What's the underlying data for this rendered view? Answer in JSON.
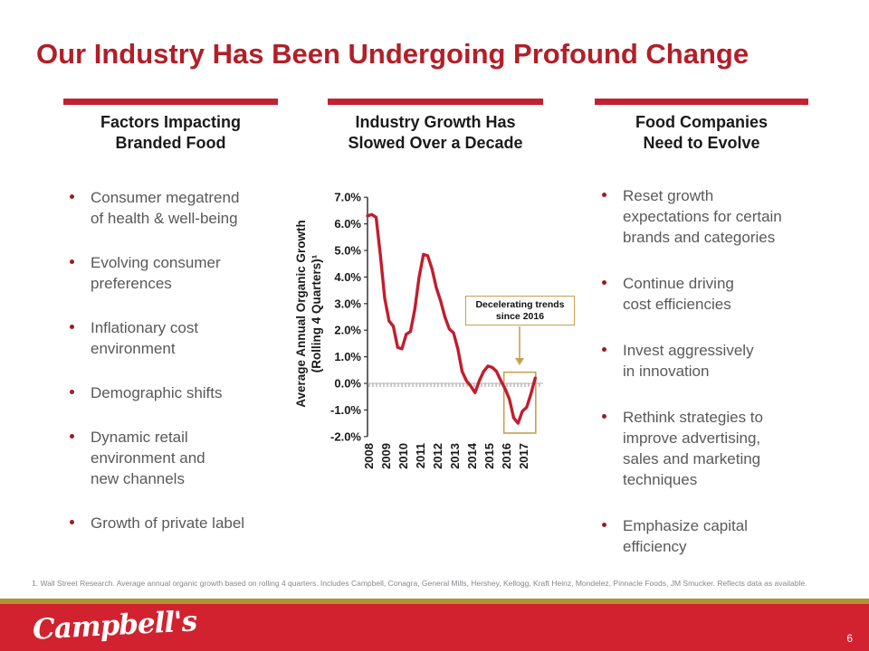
{
  "slide": {
    "title": "Our Industry Has Been Undergoing Profound Change",
    "page_number": "6",
    "footnote": "1. Wall Street Research. Average annual organic growth based on rolling 4 quarters. Includes Campbell, Conagra, General Mills, Hershey, Kellogg, Kraft Heinz, Mondelez, Pinnacle Foods, JM Smucker. Reflects data as available.",
    "logo_text": "Campbell's"
  },
  "columns": {
    "left": {
      "header": "Factors Impacting\nBranded Food",
      "items": [
        "Consumer megatrend\nof health & well-being",
        "Evolving consumer\npreferences",
        "Inflationary cost\nenvironment",
        "Demographic shifts",
        "Dynamic retail\nenvironment and\nnew channels",
        "Growth of private label"
      ]
    },
    "middle": {
      "header": "Industry Growth Has\nSlowed Over a Decade"
    },
    "right": {
      "header": "Food Companies\nNeed to Evolve",
      "items": [
        "Reset growth\nexpectations for certain\nbrands and categories",
        "Continue driving\ncost efficiencies",
        "Invest aggressively\nin innovation",
        "Rethink strategies to\nimprove advertising,\nsales and marketing\ntechniques",
        "Emphasize capital\nefficiency"
      ]
    }
  },
  "chart_data": {
    "type": "line",
    "ylabel": "Average Annual Organic Growth\n(Rolling 4 Quarters)¹",
    "x_tick_labels": [
      "2008",
      "2009",
      "2010",
      "2011",
      "2012",
      "2013",
      "2014",
      "2015",
      "2016",
      "2017"
    ],
    "y_tick_labels": [
      "7.0%",
      "6.0%",
      "5.0%",
      "4.0%",
      "3.0%",
      "2.0%",
      "1.0%",
      "0.0%",
      "-1.0%",
      "-2.0%"
    ],
    "ylim": [
      -2.0,
      7.0
    ],
    "ytick_step": 1.0,
    "grid": false,
    "zero_line": "dotted",
    "series": [
      {
        "name": "Average annual organic growth (rolling 4 quarters)",
        "color": "#C01E2E",
        "x": [
          2008,
          2008.25,
          2008.5,
          2008.75,
          2009,
          2009.25,
          2009.5,
          2009.75,
          2010,
          2010.25,
          2010.5,
          2010.75,
          2011,
          2011.25,
          2011.5,
          2011.75,
          2012,
          2012.25,
          2012.5,
          2012.75,
          2013,
          2013.25,
          2013.5,
          2013.75,
          2014,
          2014.25,
          2014.5,
          2014.75,
          2015,
          2015.25,
          2015.5,
          2015.75,
          2016,
          2016.25,
          2016.5,
          2016.75,
          2017,
          2017.25,
          2017.5,
          2017.75
        ],
        "values": [
          6.3,
          6.35,
          6.25,
          4.8,
          3.2,
          2.35,
          2.15,
          1.35,
          1.3,
          1.85,
          1.95,
          2.8,
          4.0,
          4.85,
          4.8,
          4.3,
          3.6,
          3.1,
          2.5,
          2.05,
          1.9,
          1.3,
          0.45,
          0.1,
          -0.1,
          -0.35,
          0.1,
          0.45,
          0.65,
          0.6,
          0.45,
          0.1,
          -0.2,
          -0.6,
          -1.3,
          -1.5,
          -1.05,
          -0.9,
          -0.4,
          0.2
        ]
      }
    ],
    "annotation": {
      "text": "Decelerating trends\nsince 2016",
      "border_color": "#C6A150"
    },
    "highlight_box": {
      "x_range": [
        2015.93,
        2017.78
      ],
      "y_range": [
        -1.87,
        0.42
      ],
      "border_color": "#C6A150"
    }
  },
  "colors": {
    "title_red": "#B21F28",
    "accent_bar_red": "#C32032",
    "line_red": "#C01E2E",
    "footer_red": "#D2222F",
    "gold": "#C6A150",
    "footer_gold": "#B19330",
    "body_text_gray": "#58595B"
  }
}
